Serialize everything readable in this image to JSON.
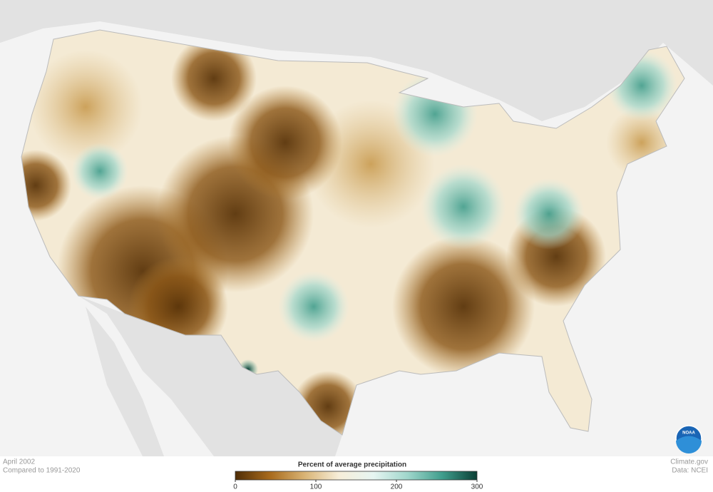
{
  "map": {
    "period": "April 2002",
    "baseline": "Compared to 1991-2020",
    "credit": "Climate.gov",
    "source": "Data: NCEI",
    "logo_text": "NOAA",
    "legend": {
      "title": "Percent of average precipitation",
      "range": [
        0,
        300
      ],
      "ticks": [
        0,
        100,
        200,
        300
      ],
      "colors": [
        "#4f2d06",
        "#a86a1c",
        "#d9b374",
        "#f7eed9",
        "#e6f5f2",
        "#9fd6cb",
        "#3f9d8c",
        "#0a3f35"
      ]
    }
  }
}
